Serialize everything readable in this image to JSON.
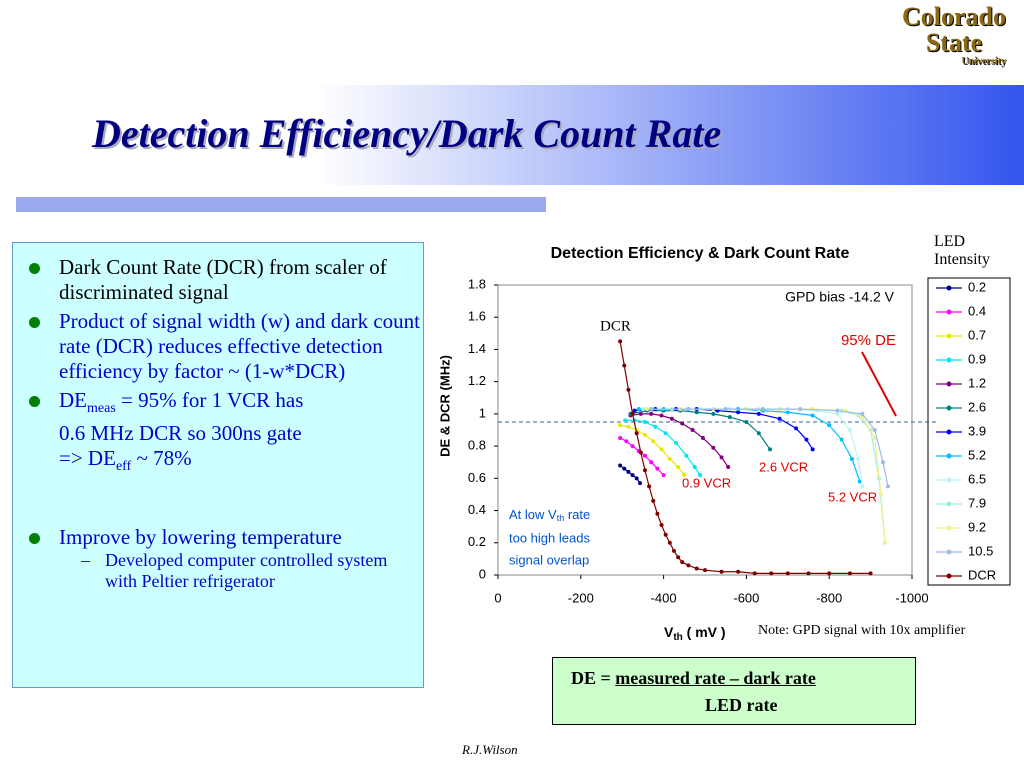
{
  "header": {
    "title": "Detection Efficiency/Dark Count Rate"
  },
  "logo": {
    "line1": "Colorado",
    "line2": "State",
    "line3": "University"
  },
  "bullets": [
    {
      "text": "Dark Count Rate (DCR) from scaler of discriminated signal"
    },
    {
      "text": "Product of signal width (w) and dark count rate (DCR) reduces effective detection efficiency by factor    ~  (1-w*DCR)"
    },
    {
      "parts": [
        "DE",
        "meas",
        " = 95% for 1 VCR has",
        "0.6 MHz DCR so 300ns gate",
        "=> DE",
        "eff",
        " ~ 78%"
      ]
    },
    {
      "text": "Improve by lowering temperature"
    },
    {
      "text": "Developed computer controlled system with Peltier refrigerator"
    }
  ],
  "note": "Note: GPD signal with 10x amplifier",
  "formula": {
    "lhs": "DE = ",
    "numerator": "measured rate – dark rate",
    "denominator": "LED rate"
  },
  "footer": "R.J.Wilson",
  "chart_data": {
    "type": "line",
    "title": "Detection Efficiency &  Dark Count Rate",
    "x_label_parts": [
      "V",
      "th",
      " ( mV )"
    ],
    "y_label": "DE & DCR (MHz)",
    "legend_title": "LED Intensity",
    "legend": "right",
    "xlim": [
      0,
      -1000
    ],
    "xticks": [
      0,
      -200,
      -400,
      -600,
      -800,
      -1000
    ],
    "ylim": [
      0,
      1.8
    ],
    "yticks": [
      0,
      0.2,
      0.4,
      0.6,
      0.8,
      1,
      1.2,
      1.4,
      1.6,
      1.8
    ],
    "reference_line": 0.95,
    "annotations": {
      "bias": "GPD bias -14.2 V",
      "de95": "95% DE",
      "dcr": "DCR",
      "vcr26": "2.6 VCR",
      "vcr09": "0.9 VCR",
      "vcr52": "5.2 VCR",
      "overlap_parts": [
        "At low V",
        "th",
        " rate",
        "too high leads",
        "signal overlap"
      ]
    },
    "series": [
      {
        "name": "0.2",
        "color": "#000080",
        "x": [
          -295,
          -305,
          -315,
          -325,
          -335,
          -343
        ],
        "values": [
          0.68,
          0.66,
          0.64,
          0.62,
          0.6,
          0.57
        ]
      },
      {
        "name": "0.4",
        "color": "#ff00ff",
        "x": [
          -295,
          -310,
          -325,
          -340,
          -355,
          -370,
          -385,
          -400
        ],
        "values": [
          0.85,
          0.83,
          0.8,
          0.77,
          0.74,
          0.7,
          0.66,
          0.62
        ]
      },
      {
        "name": "0.7",
        "color": "#e8e800",
        "x": [
          -295,
          -315,
          -335,
          -355,
          -375,
          -395,
          -415,
          -435,
          -450
        ],
        "values": [
          0.93,
          0.92,
          0.9,
          0.87,
          0.83,
          0.78,
          0.72,
          0.67,
          0.62
        ]
      },
      {
        "name": "0.9",
        "color": "#00e5ee",
        "x": [
          -307,
          -330,
          -355,
          -380,
          -405,
          -430,
          -455,
          -475,
          -488
        ],
        "values": [
          0.96,
          0.96,
          0.95,
          0.92,
          0.88,
          0.82,
          0.74,
          0.67,
          0.62
        ]
      },
      {
        "name": "1.2",
        "color": "#800080",
        "x": [
          -320,
          -345,
          -370,
          -395,
          -420,
          -445,
          -470,
          -495,
          -520,
          -540,
          -556
        ],
        "values": [
          0.99,
          1.0,
          1.0,
          0.99,
          0.97,
          0.94,
          0.9,
          0.85,
          0.79,
          0.73,
          0.67
        ]
      },
      {
        "name": "2.6",
        "color": "#008080",
        "x": [
          -320,
          -360,
          -400,
          -440,
          -480,
          -520,
          -560,
          -600,
          -630,
          -657
        ],
        "values": [
          1.0,
          1.02,
          1.02,
          1.02,
          1.01,
          1.0,
          0.98,
          0.95,
          0.88,
          0.78
        ]
      },
      {
        "name": "3.9",
        "color": "#0000ff",
        "x": [
          -330,
          -380,
          -430,
          -480,
          -530,
          -580,
          -630,
          -680,
          -720,
          -745,
          -760
        ],
        "values": [
          1.02,
          1.03,
          1.03,
          1.03,
          1.02,
          1.01,
          1.0,
          0.97,
          0.91,
          0.84,
          0.78
        ]
      },
      {
        "name": "5.2",
        "color": "#00bfff",
        "x": [
          -340,
          -400,
          -460,
          -520,
          -580,
          -640,
          -700,
          -760,
          -800,
          -830,
          -855,
          -874
        ],
        "values": [
          1.03,
          1.03,
          1.03,
          1.03,
          1.03,
          1.02,
          1.01,
          0.99,
          0.93,
          0.84,
          0.72,
          0.58
        ]
      },
      {
        "name": "6.5",
        "color": "#b8f4f4",
        "x": [
          -350,
          -420,
          -490,
          -560,
          -630,
          -700,
          -770,
          -820,
          -850,
          -870,
          -880
        ],
        "values": [
          1.03,
          1.03,
          1.03,
          1.03,
          1.03,
          1.03,
          1.02,
          1.0,
          0.9,
          0.72,
          0.55
        ]
      },
      {
        "name": "7.9",
        "color": "#a0f0e0",
        "x": [
          -360,
          -440,
          -520,
          -600,
          -680,
          -760,
          -830,
          -870,
          -900,
          -920,
          -935
        ],
        "values": [
          1.03,
          1.03,
          1.03,
          1.03,
          1.03,
          1.03,
          1.02,
          0.99,
          0.9,
          0.6,
          0.2
        ]
      },
      {
        "name": "9.2",
        "color": "#f0f090",
        "x": [
          -360,
          -440,
          -520,
          -600,
          -680,
          -760,
          -840,
          -880,
          -910,
          -925,
          -935
        ],
        "values": [
          1.03,
          1.03,
          1.03,
          1.03,
          1.03,
          1.03,
          1.02,
          0.98,
          0.85,
          0.5,
          0.2
        ]
      },
      {
        "name": "10.5",
        "color": "#99bbee",
        "x": [
          -370,
          -460,
          -550,
          -640,
          -730,
          -820,
          -880,
          -910,
          -930,
          -942
        ],
        "values": [
          1.03,
          1.03,
          1.03,
          1.03,
          1.03,
          1.02,
          1.0,
          0.9,
          0.7,
          0.55
        ]
      },
      {
        "name": "DCR",
        "color": "#800000",
        "x": [
          -295,
          -305,
          -315,
          -325,
          -335,
          -345,
          -355,
          -365,
          -375,
          -385,
          -395,
          -405,
          -415,
          -425,
          -435,
          -445,
          -460,
          -480,
          -500,
          -540,
          -580,
          -620,
          -660,
          -700,
          -750,
          -800,
          -850,
          -900
        ],
        "values": [
          1.45,
          1.3,
          1.15,
          1.0,
          0.88,
          0.76,
          0.65,
          0.55,
          0.46,
          0.38,
          0.31,
          0.25,
          0.2,
          0.15,
          0.11,
          0.08,
          0.06,
          0.04,
          0.03,
          0.02,
          0.02,
          0.01,
          0.01,
          0.01,
          0.01,
          0.01,
          0.01,
          0.01
        ]
      }
    ]
  }
}
